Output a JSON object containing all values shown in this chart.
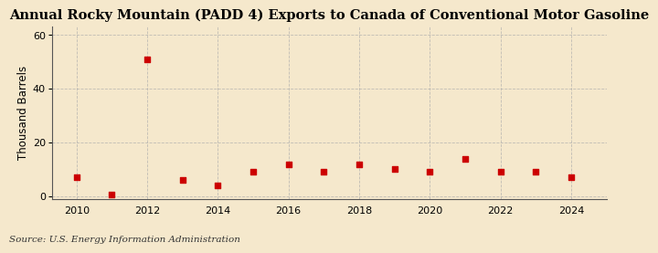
{
  "title": "Annual Rocky Mountain (PADD 4) Exports to Canada of Conventional Motor Gasoline",
  "ylabel": "Thousand Barrels",
  "source": "Source: U.S. Energy Information Administration",
  "years": [
    2010,
    2011,
    2012,
    2013,
    2014,
    2015,
    2016,
    2017,
    2018,
    2019,
    2020,
    2021,
    2022,
    2023,
    2024
  ],
  "values": [
    7,
    0.5,
    51,
    6,
    4,
    9,
    12,
    9,
    12,
    10,
    9,
    14,
    9,
    9,
    7
  ],
  "marker_color": "#cc0000",
  "marker": "s",
  "marker_size": 4,
  "background_color": "#f5e8cc",
  "grid_color": "#aaaaaa",
  "xlim": [
    2009.3,
    2025.0
  ],
  "ylim": [
    -1,
    63
  ],
  "yticks": [
    0,
    20,
    40,
    60
  ],
  "xticks": [
    2010,
    2012,
    2014,
    2016,
    2018,
    2020,
    2022,
    2024
  ],
  "title_fontsize": 10.5,
  "ylabel_fontsize": 8.5,
  "tick_fontsize": 8,
  "source_fontsize": 7.5
}
